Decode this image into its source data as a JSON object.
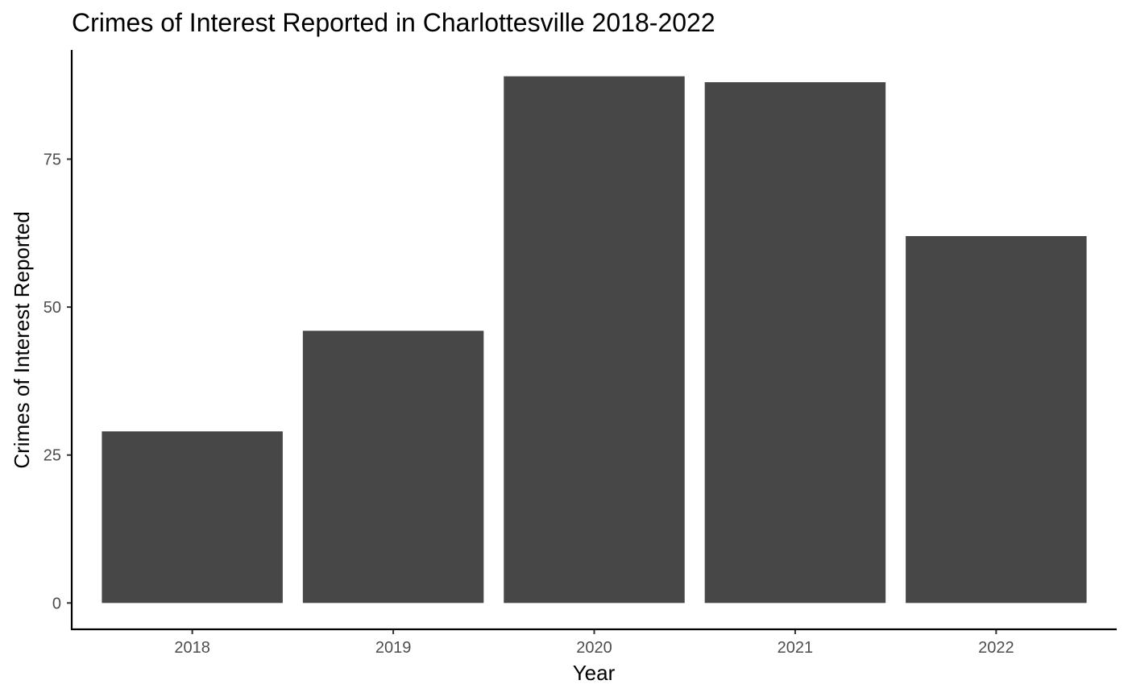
{
  "chart_data": {
    "type": "bar",
    "title": "Crimes of Interest Reported in Charlottesville 2018-2022",
    "xlabel": "Year",
    "ylabel": "Crimes of Interest Reported",
    "categories": [
      "2018",
      "2019",
      "2020",
      "2021",
      "2022"
    ],
    "values": [
      29,
      46,
      89,
      88,
      62
    ],
    "ylim": [
      -4.45,
      93.45
    ],
    "yticks": [
      0,
      25,
      50,
      75
    ],
    "ytick_labels": [
      "0",
      "25",
      "50",
      "75"
    ],
    "grid": false,
    "legend": "none",
    "bar_color": "#474747"
  }
}
